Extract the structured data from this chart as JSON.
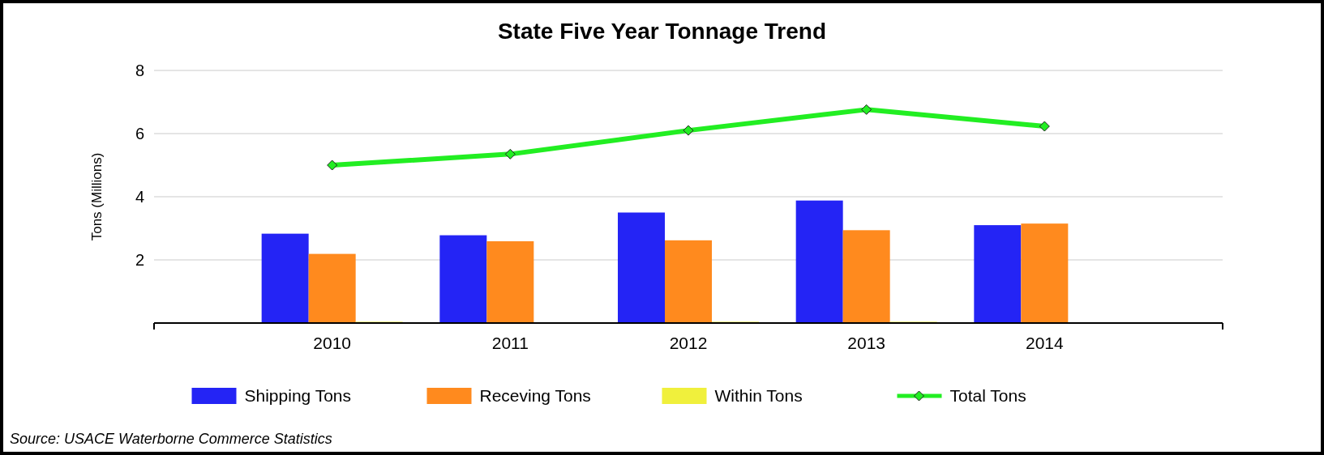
{
  "chart_data": {
    "type": "bar",
    "title": "State Five Year Tonnage Trend",
    "ylabel": "Tons (Millions)",
    "categories": [
      "2010",
      "2011",
      "2012",
      "2013",
      "2014"
    ],
    "series": [
      {
        "name": "Shipping Tons",
        "color": "#2424f5",
        "values": [
          2.83,
          2.78,
          3.5,
          3.88,
          3.1
        ]
      },
      {
        "name": "Receving Tons",
        "color": "#ff8a1e",
        "values": [
          2.19,
          2.59,
          2.62,
          2.94,
          3.15
        ]
      },
      {
        "name": "Within Tons",
        "color": "#f0f03c",
        "values": [
          0.04,
          null,
          0.04,
          0.04,
          null
        ]
      },
      {
        "name": "Total Tons",
        "type": "line",
        "color": "#22ee22",
        "marker": "diamond",
        "values": [
          5.0,
          5.35,
          6.1,
          6.76,
          6.23
        ]
      }
    ],
    "ylim": [
      0,
      8
    ],
    "yticks": [
      2,
      4,
      6,
      8
    ],
    "grid": "y",
    "legend": "bottom",
    "annotations": [
      "Source: USACE Waterborne Commerce Statistics"
    ]
  }
}
